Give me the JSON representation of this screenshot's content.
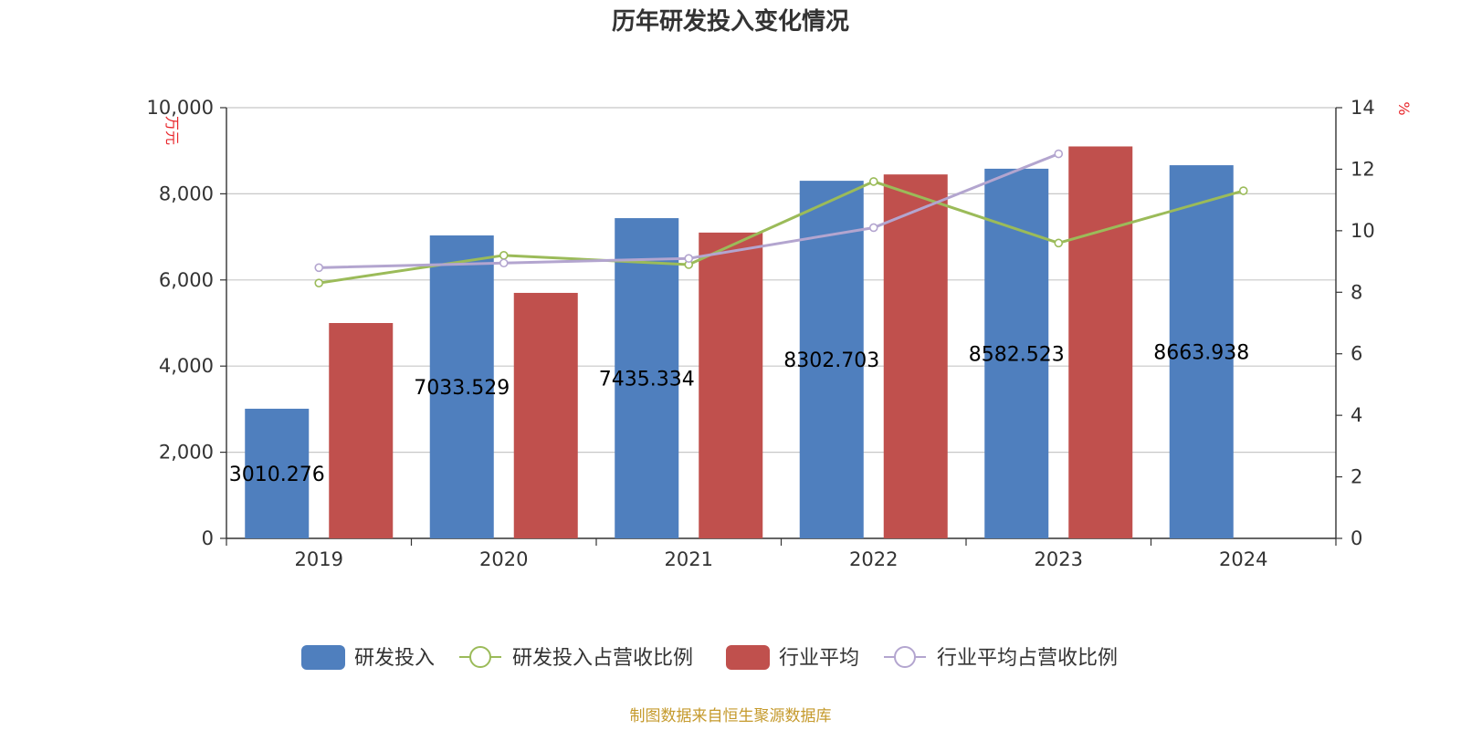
{
  "title": "历年研发投入变化情况",
  "source": "制图数据来自恒生聚源数据库",
  "chart_data": {
    "type": "bar",
    "categories": [
      "2019",
      "2020",
      "2021",
      "2022",
      "2023",
      "2024"
    ],
    "left_axis": {
      "unit": "万元",
      "min": 0,
      "max": 10000,
      "ticks": [
        0,
        2000,
        4000,
        6000,
        8000,
        10000
      ],
      "tick_labels": [
        "0",
        "2,000",
        "4,000",
        "6,000",
        "8,000",
        "10,000"
      ]
    },
    "right_axis": {
      "unit": "%",
      "min": 0,
      "max": 14,
      "ticks": [
        0,
        2,
        4,
        6,
        8,
        10,
        12,
        14
      ]
    },
    "grid": true,
    "legend_position": "bottom",
    "series": [
      {
        "name": "研发投入",
        "type": "bar",
        "axis": "left",
        "color": "#4f7fbe",
        "values": [
          3010.276,
          7033.529,
          7435.334,
          8302.703,
          8582.523,
          8663.938
        ],
        "labels": [
          "3010.276",
          "7033.529",
          "7435.334",
          "8302.703",
          "8582.523",
          "8663.938"
        ]
      },
      {
        "name": "研发投入占营收比例",
        "type": "line",
        "axis": "right",
        "color": "#9bbb59",
        "values": [
          8.3,
          9.2,
          8.9,
          11.6,
          9.6,
          11.3
        ]
      },
      {
        "name": "行业平均",
        "type": "bar",
        "axis": "left",
        "color": "#c0504d",
        "values": [
          5000,
          5700,
          7100,
          8450,
          9100,
          null
        ]
      },
      {
        "name": "行业平均占营收比例",
        "type": "line",
        "axis": "right",
        "color": "#b3a5cf",
        "values": [
          8.8,
          8.95,
          9.1,
          10.1,
          12.5,
          null
        ]
      }
    ]
  }
}
